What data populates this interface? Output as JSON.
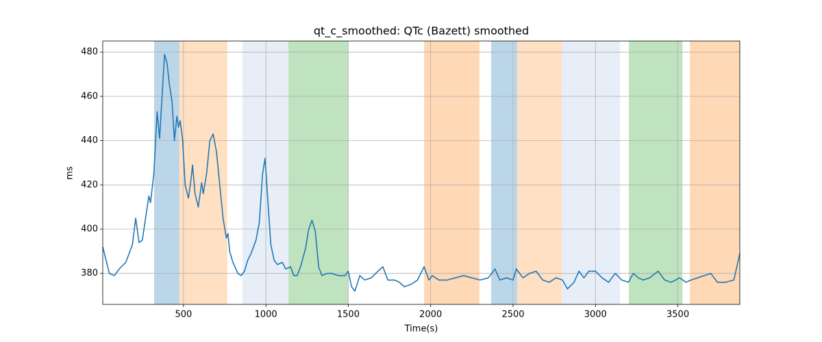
{
  "chart_data": {
    "type": "line",
    "title": "qt_c_smoothed: QTc (Bazett) smoothed",
    "x_label": "Time(s)",
    "y_label": "ms",
    "xlim": [
      10,
      3876
    ],
    "ylim": [
      366,
      485
    ],
    "xticks": [
      500,
      1000,
      1500,
      2000,
      2500,
      3000,
      3500
    ],
    "yticks": [
      380,
      400,
      420,
      440,
      460,
      480
    ],
    "grid": true,
    "spans": [
      {
        "x0": 322,
        "x1": 475,
        "color": "#1f77b4",
        "alpha": 0.3
      },
      {
        "x0": 475,
        "x1": 766,
        "color": "#ffbb78",
        "alpha": 0.45
      },
      {
        "x0": 858,
        "x1": 1137,
        "color": "#aec7e8",
        "alpha": 0.3
      },
      {
        "x0": 1137,
        "x1": 1499,
        "color": "#2ca02c",
        "alpha": 0.3
      },
      {
        "x0": 1960,
        "x1": 2296,
        "color": "#ff7f0e",
        "alpha": 0.3
      },
      {
        "x0": 2367,
        "x1": 2525,
        "color": "#1f77b4",
        "alpha": 0.3
      },
      {
        "x0": 2525,
        "x1": 2796,
        "color": "#ffbb78",
        "alpha": 0.45
      },
      {
        "x0": 2796,
        "x1": 3149,
        "color": "#aec7e8",
        "alpha": 0.3
      },
      {
        "x0": 3203,
        "x1": 3528,
        "color": "#2ca02c",
        "alpha": 0.3
      },
      {
        "x0": 3573,
        "x1": 3876,
        "color": "#ff7f0e",
        "alpha": 0.3
      }
    ],
    "x": [
      10,
      50,
      80,
      110,
      150,
      190,
      210,
      230,
      250,
      280,
      290,
      300,
      320,
      340,
      355,
      370,
      385,
      400,
      415,
      430,
      445,
      460,
      470,
      480,
      495,
      510,
      530,
      545,
      555,
      570,
      590,
      610,
      620,
      640,
      660,
      680,
      700,
      720,
      740,
      760,
      770,
      780,
      800,
      830,
      850,
      870,
      890,
      910,
      940,
      960,
      980,
      995,
      1010,
      1030,
      1050,
      1070,
      1100,
      1120,
      1150,
      1170,
      1190,
      1210,
      1240,
      1260,
      1280,
      1300,
      1320,
      1340,
      1370,
      1400,
      1440,
      1480,
      1500,
      1520,
      1540,
      1570,
      1600,
      1640,
      1680,
      1710,
      1740,
      1780,
      1810,
      1840,
      1880,
      1920,
      1960,
      1990,
      2010,
      2050,
      2100,
      2150,
      2200,
      2250,
      2300,
      2350,
      2390,
      2420,
      2460,
      2500,
      2520,
      2560,
      2600,
      2640,
      2680,
      2720,
      2760,
      2800,
      2830,
      2870,
      2900,
      2930,
      2960,
      3000,
      3040,
      3080,
      3120,
      3160,
      3200,
      3230,
      3260,
      3290,
      3330,
      3380,
      3420,
      3460,
      3510,
      3550,
      3580,
      3620,
      3660,
      3700,
      3740,
      3790,
      3840,
      3876
    ],
    "series": [
      {
        "name": "qt_c_smoothed",
        "color": "#1f77b4",
        "values": [
          392,
          380,
          379,
          382,
          385,
          393,
          405,
          394,
          395,
          410,
          415,
          412,
          425,
          453,
          441,
          460,
          479,
          475,
          465,
          458,
          440,
          451,
          446,
          449,
          440,
          420,
          414,
          422,
          429,
          416,
          410,
          421,
          416,
          425,
          440,
          443,
          435,
          420,
          405,
          396,
          398,
          390,
          385,
          380,
          379,
          381,
          386,
          389,
          395,
          403,
          425,
          432,
          415,
          393,
          386,
          384,
          385,
          382,
          383,
          379,
          379,
          383,
          391,
          400,
          404,
          399,
          383,
          379,
          380,
          380,
          379,
          379,
          381,
          374,
          372,
          379,
          377,
          378,
          381,
          383,
          377,
          377,
          376,
          374,
          375,
          377,
          383,
          377,
          379,
          377,
          377,
          378,
          379,
          378,
          377,
          378,
          382,
          377,
          378,
          377,
          382,
          378,
          380,
          381,
          377,
          376,
          378,
          377,
          373,
          376,
          381,
          378,
          381,
          381,
          378,
          376,
          380,
          377,
          376,
          380,
          378,
          377,
          378,
          381,
          377,
          376,
          378,
          376,
          377,
          378,
          379,
          380,
          376,
          376,
          377,
          389
        ]
      }
    ]
  }
}
